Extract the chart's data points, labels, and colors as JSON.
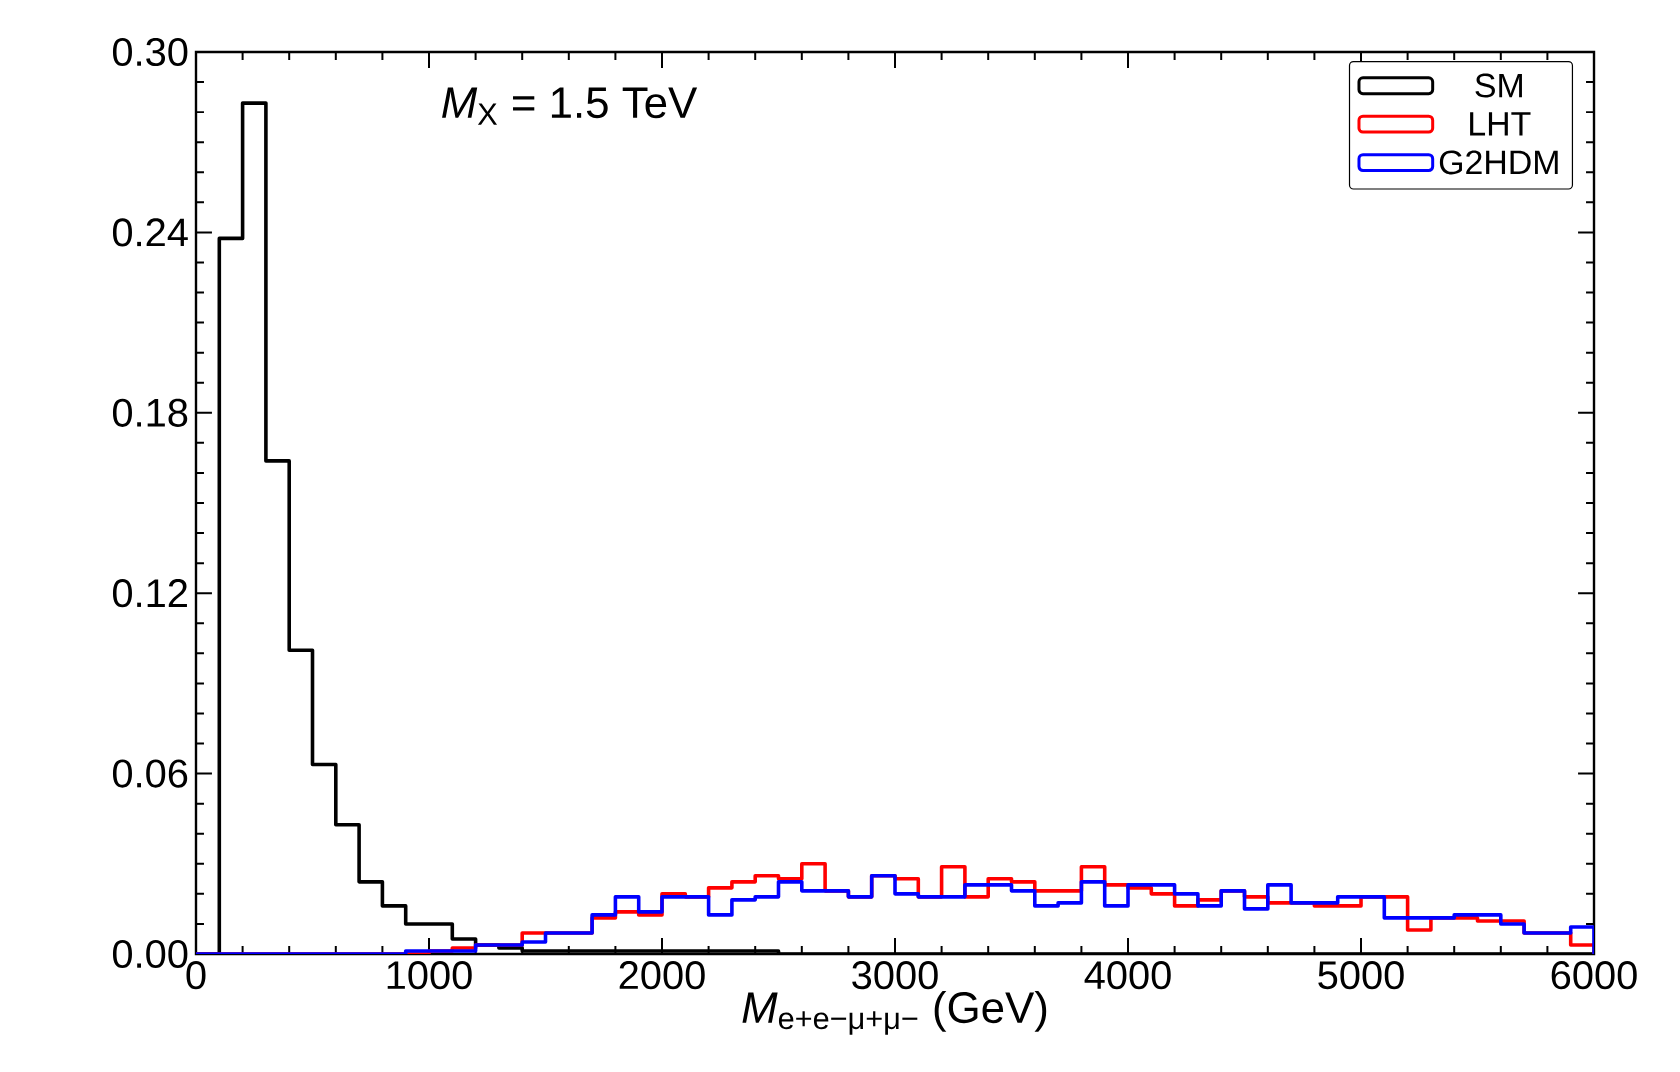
{
  "chart_data": {
    "type": "histogram",
    "annotations": [
      "*M*$_{X}$ = 1.5 TeV"
    ],
    "xlabel": "*M*$_{e+e−μ+μ−}$ (GeV)",
    "bins": [
      0,
      100,
      200,
      300,
      400,
      500,
      600,
      700,
      800,
      900,
      1000,
      1100,
      1200,
      1300,
      1400,
      1500,
      1600,
      1700,
      1800,
      1900,
      2000,
      2100,
      2200,
      2300,
      2400,
      2500,
      2600,
      2700,
      2800,
      2900,
      3000,
      3100,
      3200,
      3300,
      3400,
      3500,
      3600,
      3700,
      3800,
      3900,
      4000,
      4100,
      4200,
      4300,
      4400,
      4500,
      4600,
      4700,
      4800,
      4900,
      5000,
      5100,
      5200,
      5300,
      5400,
      5500,
      5600,
      5700,
      5800,
      5900,
      6000
    ],
    "series": [
      {
        "name": "SM",
        "color": "#000000",
        "values": [
          0,
          0.238,
          0.283,
          0.164,
          0.101,
          0.063,
          0.043,
          0.024,
          0.016,
          0.01,
          0.01,
          0.005,
          0.003,
          0.002,
          0.001,
          0.001,
          0.001,
          0.001,
          0.001,
          0.001,
          0.001,
          0.001,
          0.001,
          0.001,
          0.001,
          0,
          0,
          0,
          0,
          0,
          0,
          0,
          0,
          0,
          0,
          0,
          0,
          0,
          0,
          0,
          0,
          0,
          0,
          0,
          0,
          0,
          0,
          0,
          0,
          0,
          0,
          0,
          0,
          0,
          0,
          0,
          0,
          0,
          0,
          0
        ]
      },
      {
        "name": "LHT",
        "color": "#ff0000",
        "values": [
          0,
          0,
          0,
          0,
          0,
          0,
          0,
          0,
          0,
          0,
          0.001,
          0.002,
          0.003,
          0.003,
          0.007,
          0.007,
          0.007,
          0.012,
          0.014,
          0.013,
          0.02,
          0.019,
          0.022,
          0.024,
          0.026,
          0.025,
          0.03,
          0.021,
          0.019,
          0.026,
          0.025,
          0.019,
          0.029,
          0.019,
          0.025,
          0.024,
          0.021,
          0.021,
          0.029,
          0.023,
          0.022,
          0.02,
          0.016,
          0.018,
          0.021,
          0.019,
          0.017,
          0.017,
          0.016,
          0.016,
          0.019,
          0.019,
          0.008,
          0.012,
          0.012,
          0.011,
          0.011,
          0.007,
          0.007,
          0.003
        ]
      },
      {
        "name": "G2HDM",
        "color": "#0000ff",
        "values": [
          0,
          0,
          0,
          0,
          0,
          0,
          0,
          0,
          0,
          0.001,
          0.001,
          0.001,
          0.003,
          0.003,
          0.004,
          0.007,
          0.007,
          0.013,
          0.019,
          0.014,
          0.019,
          0.019,
          0.013,
          0.018,
          0.019,
          0.024,
          0.021,
          0.021,
          0.019,
          0.026,
          0.02,
          0.019,
          0.019,
          0.023,
          0.023,
          0.021,
          0.016,
          0.017,
          0.024,
          0.016,
          0.023,
          0.023,
          0.02,
          0.016,
          0.021,
          0.015,
          0.023,
          0.017,
          0.017,
          0.019,
          0.019,
          0.012,
          0.012,
          0.012,
          0.013,
          0.013,
          0.01,
          0.007,
          0.007,
          0.009
        ]
      }
    ],
    "xlim": [
      0,
      6000
    ],
    "ylim": [
      0,
      0.3
    ],
    "xticks": [
      0,
      1000,
      2000,
      3000,
      4000,
      5000,
      6000
    ],
    "yticks": [
      {
        "value": 0,
        "label": "0.00"
      },
      {
        "value": 0.06,
        "label": "0.06"
      },
      {
        "value": 0.12,
        "label": "0.12"
      },
      {
        "value": 0.18,
        "label": "0.18"
      },
      {
        "value": 0.24,
        "label": "0.24"
      },
      {
        "value": 0.3,
        "label": "0.30"
      }
    ],
    "legend": "top right",
    "grid": false
  }
}
